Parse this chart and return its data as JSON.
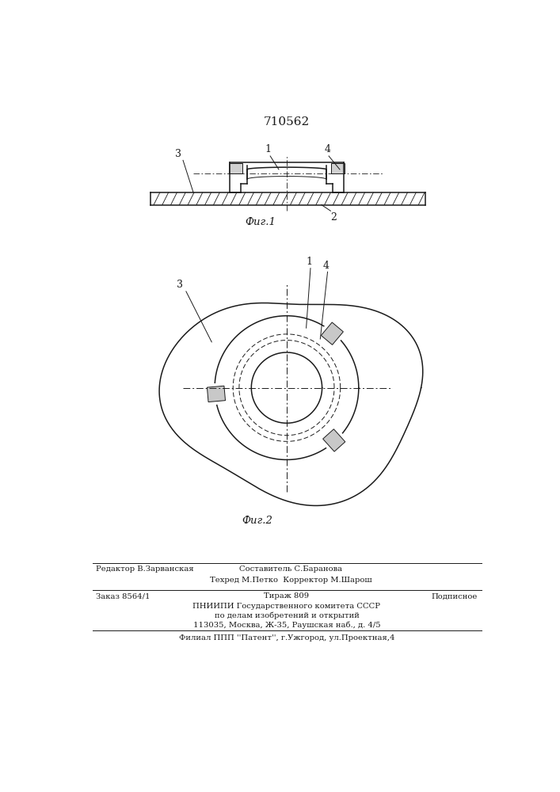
{
  "title": "710562",
  "fig1_label": "Фиг.1",
  "fig2_label": "Фиг.2",
  "bg_color": "#ffffff",
  "lc": "#1a1a1a"
}
